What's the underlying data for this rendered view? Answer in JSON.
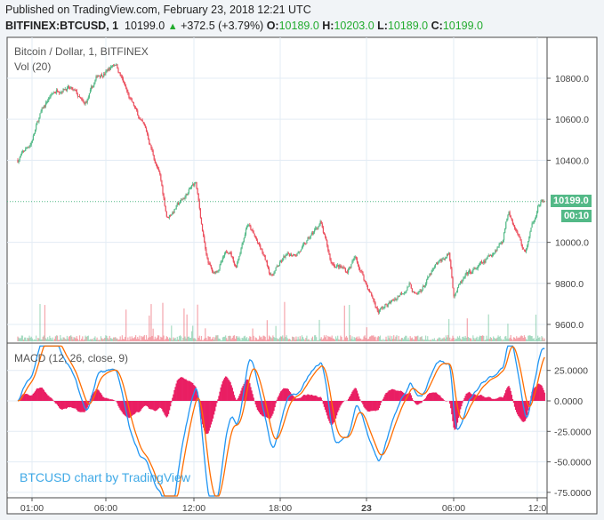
{
  "header": {
    "published": "Published on TradingView.com, February 23, 2018 12:21 UTC",
    "symbol": "BITFINEX:BTCUSD, 1",
    "last": "10199.0",
    "change": "+372.5 (+3.79%)",
    "o_label": "O:",
    "o": "10189.0",
    "h_label": "H:",
    "h": "10203.0",
    "l_label": "L:",
    "l": "10189.0",
    "c_label": "C:",
    "c": "10199.0",
    "change_icon": "triangle-up-icon"
  },
  "legend": {
    "title": "Bitcoin / Dollar, 1, BITFINEX",
    "volume": "Vol (20)",
    "macd": "MACD (12, 26, close, 9)"
  },
  "price_tag": {
    "price": "10199.0",
    "countdown": "00:10"
  },
  "watermark": "BTCUSD chart by TradingView",
  "colors": {
    "up": "#53b987",
    "down": "#eb4d5c",
    "macd": "#2196f3",
    "signal": "#ff6d00",
    "histogram": "#e91e63"
  },
  "chart_data": [
    {
      "type": "candlestick",
      "title": "Bitcoin / Dollar, 1, BITFINEX",
      "interval": "1 minute",
      "y_ticks": [
        "10800.0",
        "10600.0",
        "10400.0",
        "10000.0",
        "9800.0",
        "9600.0"
      ],
      "ylim": [
        9540,
        10920
      ],
      "x_ticks": [
        "01:00",
        "06:00",
        "12:00",
        "18:00",
        "23",
        "06:00",
        "12:0"
      ],
      "close_path": [
        [
          "02-22 00:00",
          10401
        ],
        [
          "02-22 00:55",
          10488
        ],
        [
          "02-22 01:32",
          10618
        ],
        [
          "02-22 02:09",
          10705
        ],
        [
          "02-22 02:46",
          10748
        ],
        [
          "02-22 03:22",
          10757
        ],
        [
          "02-22 03:59",
          10726
        ],
        [
          "02-22 04:36",
          10661
        ],
        [
          "02-22 05:31",
          10813
        ],
        [
          "02-22 06:08",
          10835
        ],
        [
          "02-22 06:45",
          10878
        ],
        [
          "02-22 07:40",
          10705
        ],
        [
          "02-22 08:54",
          10531
        ],
        [
          "02-22 09:49",
          10315
        ],
        [
          "02-22 10:18",
          10120
        ],
        [
          "02-22 11:21",
          10206
        ],
        [
          "02-22 12:16",
          10293
        ],
        [
          "02-22 13:00",
          9925
        ],
        [
          "02-22 13:30",
          9838
        ],
        [
          "02-22 14:36",
          9968
        ],
        [
          "02-22 15:02",
          9881
        ],
        [
          "02-22 15:50",
          10098
        ],
        [
          "02-22 16:52",
          9946
        ],
        [
          "02-22 17:29",
          9838
        ],
        [
          "02-22 18:24",
          9925
        ],
        [
          "02-22 19:38",
          9968
        ],
        [
          "02-22 20:52",
          10098
        ],
        [
          "02-22 21:36",
          9903
        ],
        [
          "02-22 22:42",
          9860
        ],
        [
          "02-22 23:18",
          9925
        ],
        [
          "02-23 00:03",
          9795
        ],
        [
          "02-23 00:51",
          9665
        ],
        [
          "02-23 01:46",
          9708
        ],
        [
          "02-23 03:00",
          9795
        ],
        [
          "02-23 03:29",
          9730
        ],
        [
          "02-23 04:50",
          9881
        ],
        [
          "02-23 05:45",
          9946
        ],
        [
          "02-23 06:04",
          9751
        ],
        [
          "02-23 06:59",
          9838
        ],
        [
          "02-23 08:13",
          9903
        ],
        [
          "02-23 09:25",
          10011
        ],
        [
          "02-23 09:52",
          10163
        ],
        [
          "02-23 10:58",
          9946
        ],
        [
          "02-23 11:53",
          10185
        ],
        [
          "02-23 12:21",
          10199
        ]
      ],
      "volume_study": "Vol (20)",
      "last_price": 10199.0
    },
    {
      "type": "line",
      "title": "MACD (12, 26, close, 9)",
      "series": [
        {
          "name": "MACD"
        },
        {
          "name": "Signal"
        },
        {
          "name": "Histogram"
        }
      ],
      "y_ticks": [
        "25.0000",
        "0.0000",
        "-25.0000",
        "-50.0000",
        "-75.0000"
      ],
      "ylim": [
        -78,
        45
      ]
    }
  ]
}
